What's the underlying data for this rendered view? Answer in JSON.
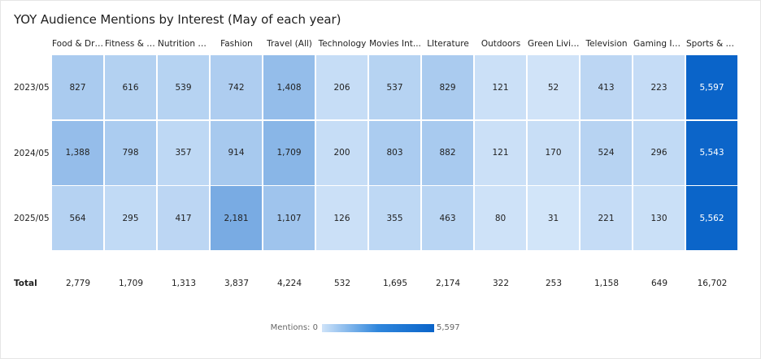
{
  "chart_data": {
    "type": "heatmap",
    "title": "YOY Audience Mentions by Interest (May of each year)",
    "columns": [
      "Food & Drink",
      "Fitness & E...",
      "Nutrition &...",
      "Fashion",
      "Travel (All)",
      "Technology",
      "Movies Int...",
      "LIterature",
      "Outdoors",
      "Green Living",
      "Television",
      "Gaming Int...",
      "Sports & At..."
    ],
    "rows": [
      "2023/05",
      "2024/05",
      "2025/05"
    ],
    "values": [
      [
        827,
        616,
        539,
        742,
        1408,
        206,
        537,
        829,
        121,
        52,
        413,
        223,
        5597
      ],
      [
        1388,
        798,
        357,
        914,
        1709,
        200,
        803,
        882,
        121,
        170,
        524,
        296,
        5543
      ],
      [
        564,
        295,
        417,
        2181,
        1107,
        126,
        355,
        463,
        80,
        31,
        221,
        130,
        5562
      ]
    ],
    "totals_label": "Total",
    "totals": [
      2779,
      1709,
      1313,
      3837,
      4224,
      532,
      1695,
      2174,
      322,
      253,
      1158,
      649,
      16702
    ],
    "legend": {
      "label": "Mentions:",
      "min": 0,
      "max_label": "5,597",
      "max": 5597,
      "color_low": "#cfe3f9",
      "color_high": "#0a64c9"
    }
  }
}
